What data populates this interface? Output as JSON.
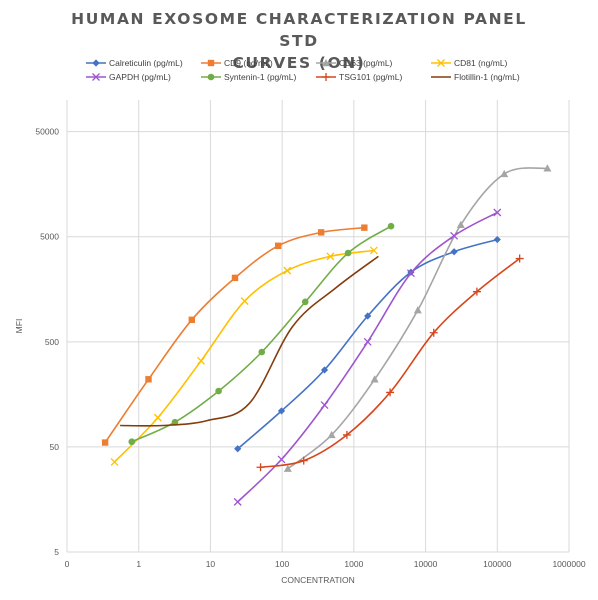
{
  "chart_data": {
    "type": "line",
    "title_lines": [
      "HUMAN EXOSOME CHARACTERIZATION PANEL STD",
      "CURVES (ON)"
    ],
    "xlabel": "CONCENTRATION",
    "ylabel": "MFI",
    "x_scale": "log",
    "y_scale": "log",
    "xlim": [
      0.1,
      1000000
    ],
    "ylim": [
      5,
      100000
    ],
    "x_tick_values": [
      0.1,
      1,
      10,
      100,
      1000,
      10000,
      100000,
      1000000
    ],
    "x_tick_labels": [
      "0",
      "1",
      "10",
      "100",
      "1000",
      "10000",
      "100000",
      "1000000"
    ],
    "y_tick_values": [
      5,
      50,
      500,
      5000,
      50000
    ],
    "y_tick_labels": [
      "5",
      "50",
      "500",
      "5000",
      "50000"
    ],
    "grid": {
      "horizontal": true,
      "vertical": true
    },
    "legend_position": "top",
    "series": [
      {
        "name": "Calreticulin (pg/mL)",
        "color": "#4472C4",
        "marker": "diamond",
        "x": [
          24,
          98,
          390,
          1560,
          6250,
          25000,
          100000
        ],
        "y": [
          48,
          110,
          270,
          880,
          2300,
          3600,
          4700
        ]
      },
      {
        "name": "CD9 (ng/mL)",
        "color": "#ED7D31",
        "marker": "square",
        "x": [
          0.34,
          1.37,
          5.5,
          22,
          88,
          350,
          1400
        ],
        "y": [
          55,
          220,
          810,
          2030,
          4100,
          5500,
          6100
        ]
      },
      {
        "name": "CD63 (pg/mL)",
        "color": "#A5A5A5",
        "marker": "triangle",
        "x": [
          120,
          490,
          1950,
          7800,
          31000,
          125000,
          500000
        ],
        "y": [
          31,
          65,
          220,
          1000,
          6500,
          19800,
          22400
        ]
      },
      {
        "name": "CD81 (ng/mL)",
        "color": "#FFC000",
        "marker": "x",
        "x": [
          0.46,
          1.85,
          7.4,
          30,
          118,
          470,
          1900
        ],
        "y": [
          36,
          95,
          330,
          1220,
          2380,
          3250,
          3700
        ]
      },
      {
        "name": "GAPDH (pg/mL)",
        "color": "#9E55CE",
        "marker": "x",
        "x": [
          24,
          98,
          390,
          1560,
          6250,
          25000,
          100000
        ],
        "y": [
          15,
          38,
          125,
          500,
          2250,
          5100,
          8500
        ]
      },
      {
        "name": "Syntenin-1 (pg/mL)",
        "color": "#70AD47",
        "marker": "circle",
        "x": [
          0.8,
          3.2,
          13,
          52,
          210,
          830,
          3300
        ],
        "y": [
          56,
          86,
          170,
          400,
          1200,
          3500,
          6300
        ]
      },
      {
        "name": "TSG101 (pg/mL)",
        "color": "#D7461A",
        "marker": "plus",
        "x": [
          50,
          200,
          800,
          3200,
          13000,
          52000,
          205000
        ],
        "y": [
          32,
          37,
          65,
          165,
          610,
          1500,
          3100
        ]
      },
      {
        "name": "Flotillin-1 (ng/mL)",
        "color": "#843C0C",
        "marker": "none",
        "x": [
          0.55,
          2.2,
          9,
          35,
          140,
          560,
          2200
        ],
        "y": [
          80,
          80,
          89,
          130,
          700,
          1630,
          3250
        ]
      }
    ]
  }
}
